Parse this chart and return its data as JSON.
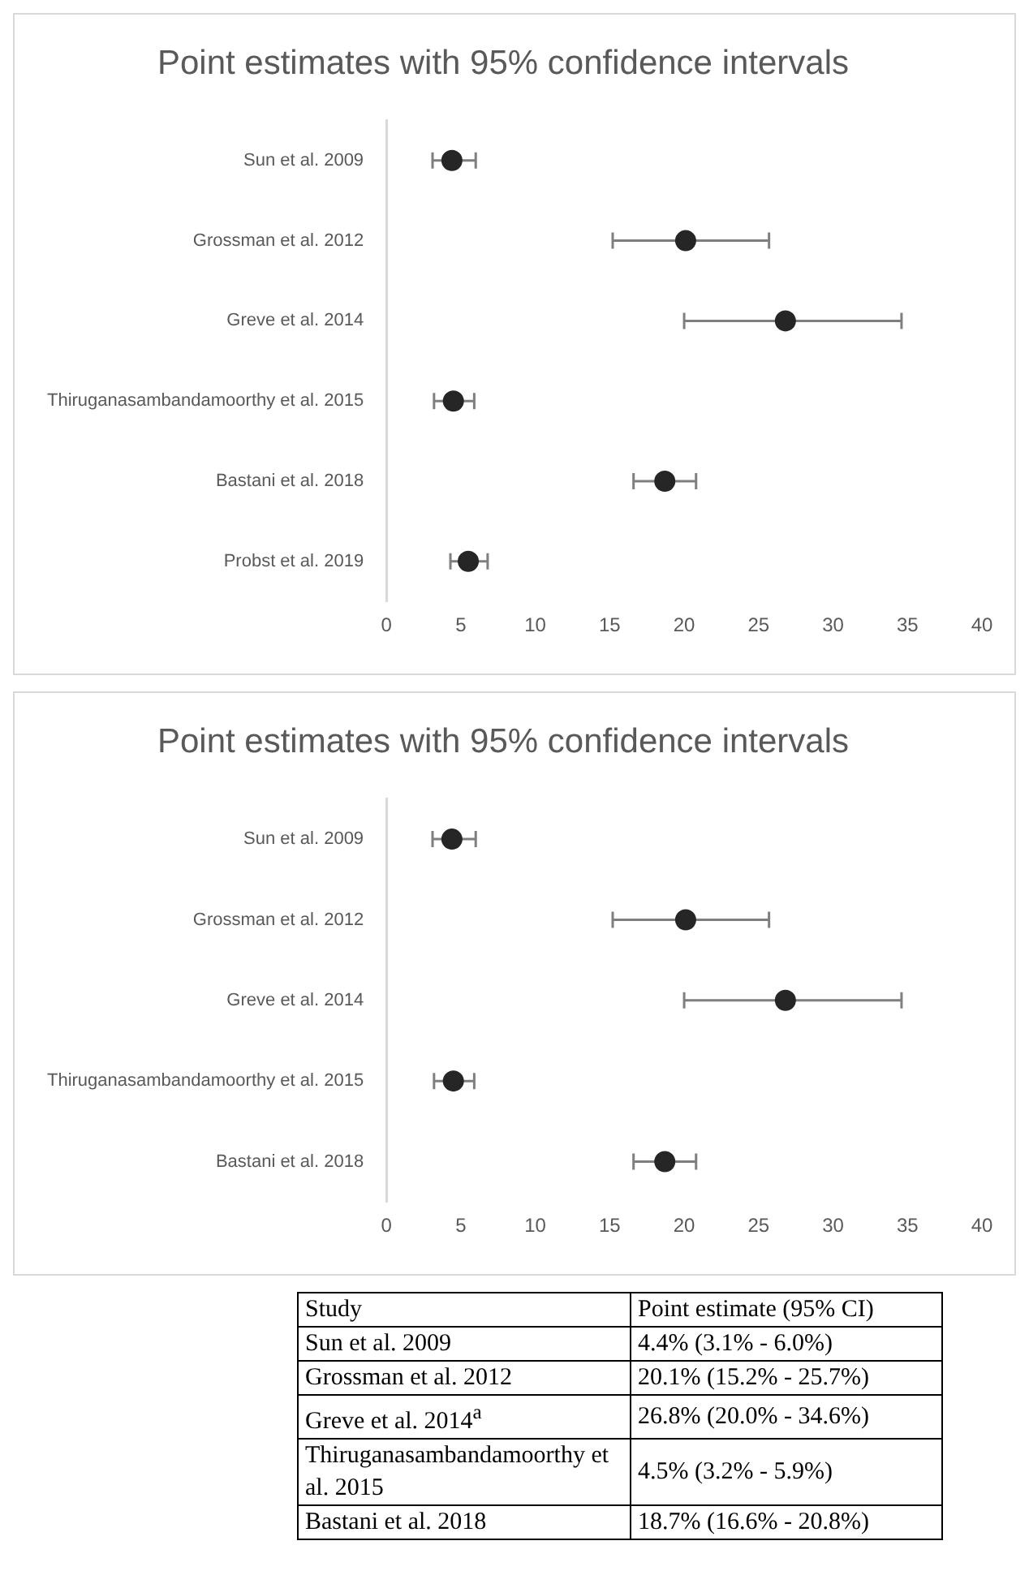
{
  "chart_data": [
    {
      "type": "scatter",
      "orientation": "horizontal",
      "title": "Point estimates with 95% confidence intervals",
      "categories": [
        "Sun et al. 2009",
        "Grossman et al. 2012",
        "Greve et al. 2014",
        "Thiruganasambandamoorthy et al. 2015",
        "Bastani et al. 2018",
        "Probst et al. 2019"
      ],
      "values": [
        4.4,
        20.1,
        26.8,
        4.5,
        18.7,
        5.5
      ],
      "errors": [
        [
          3.1,
          6.0
        ],
        [
          15.2,
          25.7
        ],
        [
          20.0,
          34.6
        ],
        [
          3.2,
          5.9
        ],
        [
          16.6,
          20.8
        ],
        [
          4.3,
          6.8
        ]
      ],
      "color": "#262626",
      "marker": "circle",
      "xlim": [
        0,
        40
      ],
      "xticks": [
        0,
        5,
        10,
        15,
        20,
        25,
        30,
        35,
        40
      ],
      "grid": false,
      "legend": false
    },
    {
      "type": "scatter",
      "orientation": "horizontal",
      "title": "Point estimates with 95% confidence intervals",
      "categories": [
        "Sun et al. 2009",
        "Grossman et al. 2012",
        "Greve et al. 2014",
        "Thiruganasambandamoorthy et al. 2015",
        "Bastani et al. 2018"
      ],
      "values": [
        4.4,
        20.1,
        26.8,
        4.5,
        18.7
      ],
      "errors": [
        [
          3.1,
          6.0
        ],
        [
          15.2,
          25.7
        ],
        [
          20.0,
          34.6
        ],
        [
          3.2,
          5.9
        ],
        [
          16.6,
          20.8
        ]
      ],
      "color": "#262626",
      "marker": "circle",
      "xlim": [
        0,
        40
      ],
      "xticks": [
        0,
        5,
        10,
        15,
        20,
        25,
        30,
        35,
        40
      ],
      "grid": false,
      "legend": false
    },
    {
      "type": "other",
      "annotations": [
        "Study",
        "Point estimate (95% CI)",
        "Sun et al. 2009",
        "4.4% (3.1% - 6.0%)",
        "Grossman et al. 2012",
        "20.1% (15.2% - 25.7%)",
        "Greve et al. 2014$^{a}$",
        "26.8% (20.0% - 34.6%)",
        "Thiruganasambandamoorthy et al. 2015",
        "4.5% (3.2% - 5.9%)",
        "Bastani et al. 2018",
        "18.7% (16.6% - 20.8%)"
      ]
    }
  ]
}
